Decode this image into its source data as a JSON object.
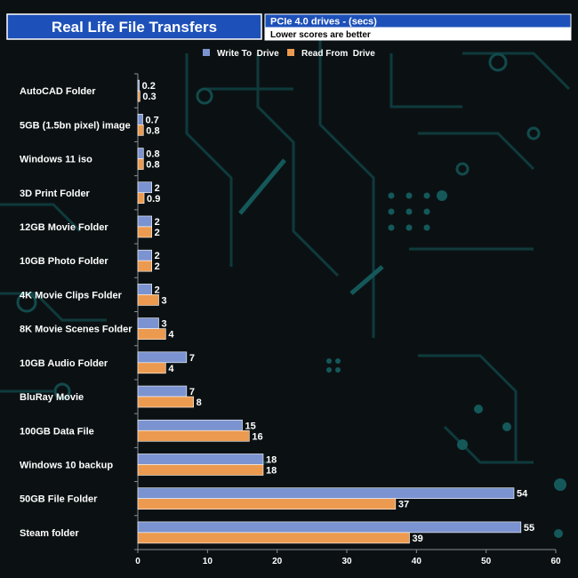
{
  "chart_data": {
    "type": "bar",
    "orientation": "horizontal",
    "title": "Real Life File Transfers",
    "subtitle": "PCIe 4.0 drives - (secs)",
    "note": "Lower scores are better",
    "categories": [
      "AutoCAD Folder",
      "5GB (1.5bn pixel) image",
      "Windows 11 iso",
      "3D Print Folder",
      "12GB Movie Folder",
      "10GB Photo Folder",
      "4K Movie Clips Folder",
      "8K Movie Scenes Folder",
      "10GB Audio Folder",
      "BluRay Movie",
      "100GB Data File",
      "Windows 10 backup",
      "50GB File Folder",
      "Steam folder"
    ],
    "series": [
      {
        "name": "Write To  Drive",
        "color": "#7b93d0",
        "values": [
          0.2,
          0.7,
          0.8,
          2,
          2,
          2,
          2,
          3,
          7,
          7,
          15,
          18,
          54,
          55
        ]
      },
      {
        "name": "Read From  Drive",
        "color": "#ec9a4f",
        "values": [
          0.3,
          0.8,
          0.8,
          0.9,
          2,
          2,
          3,
          4,
          4,
          8,
          16,
          18,
          37,
          39
        ]
      }
    ],
    "xlim": [
      0,
      60
    ],
    "xticks": [
      0,
      10,
      20,
      30,
      40,
      50,
      60
    ],
    "legend_position": "top",
    "grid": false
  }
}
